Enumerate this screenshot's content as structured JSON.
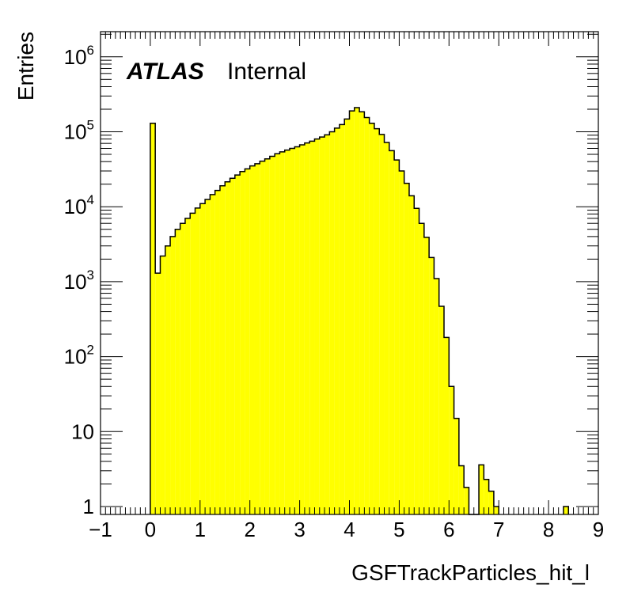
{
  "chart_data": {
    "type": "bar",
    "style": "histogram-step",
    "xlabel": "GSFTrackParticles_hit_l",
    "ylabel": "Entries",
    "atlas_label": "ATLAS",
    "atlas_sublabel": "Internal",
    "xlim": [
      -1,
      9
    ],
    "ylim": [
      0.8,
      2000000
    ],
    "log_y": true,
    "bin_width": 0.1,
    "fill_color": "#ffff00",
    "line_color": "#000000",
    "x_tick_labels": [
      "−1",
      "0",
      "1",
      "2",
      "3",
      "4",
      "5",
      "6",
      "7",
      "8",
      "9"
    ],
    "y_tick_labels": [
      {
        "value": 1,
        "mantissa": "1",
        "exponent": ""
      },
      {
        "value": 10,
        "mantissa": "10",
        "exponent": ""
      },
      {
        "value": 100,
        "mantissa": "10",
        "exponent": "2"
      },
      {
        "value": 1000,
        "mantissa": "10",
        "exponent": "3"
      },
      {
        "value": 10000,
        "mantissa": "10",
        "exponent": "4"
      },
      {
        "value": 100000,
        "mantissa": "10",
        "exponent": "5"
      },
      {
        "value": 1000000,
        "mantissa": "10",
        "exponent": "6"
      }
    ],
    "series": [
      {
        "bin_lows": [
          0.0,
          0.1,
          0.2,
          0.3,
          0.4,
          0.5,
          0.6,
          0.7,
          0.8,
          0.9,
          1.0,
          1.1,
          1.2,
          1.3,
          1.4,
          1.5,
          1.6,
          1.7,
          1.8,
          1.9,
          2.0,
          2.1,
          2.2,
          2.3,
          2.4,
          2.5,
          2.6,
          2.7,
          2.8,
          2.9,
          3.0,
          3.1,
          3.2,
          3.3,
          3.4,
          3.5,
          3.6,
          3.7,
          3.8,
          3.9,
          4.0,
          4.1,
          4.2,
          4.3,
          4.4,
          4.5,
          4.6,
          4.7,
          4.8,
          4.9,
          5.0,
          5.1,
          5.2,
          5.3,
          5.4,
          5.5,
          5.6,
          5.7,
          5.8,
          5.9,
          6.0,
          6.1,
          6.2,
          6.3,
          6.4,
          6.5,
          6.6,
          6.7,
          6.8,
          6.9,
          8.3
        ],
        "values": [
          130000,
          1300,
          2200,
          3000,
          4000,
          5000,
          6000,
          7000,
          8200,
          9600,
          11000,
          12500,
          14500,
          16500,
          19000,
          21500,
          24000,
          26500,
          29500,
          32000,
          35000,
          37500,
          40500,
          43500,
          47000,
          51000,
          54000,
          57000,
          60000,
          63000,
          67000,
          71000,
          75000,
          80000,
          85000,
          91000,
          100000,
          112000,
          125000,
          148000,
          190000,
          210000,
          185000,
          155000,
          130000,
          110000,
          92000,
          72000,
          56000,
          42000,
          30000,
          20500,
          14000,
          9500,
          6000,
          3900,
          2100,
          1100,
          470,
          180,
          40,
          15,
          3.5,
          1.8,
          0.6,
          0.6,
          3.6,
          2.3,
          1.6,
          1.0,
          1.0
        ]
      }
    ]
  }
}
